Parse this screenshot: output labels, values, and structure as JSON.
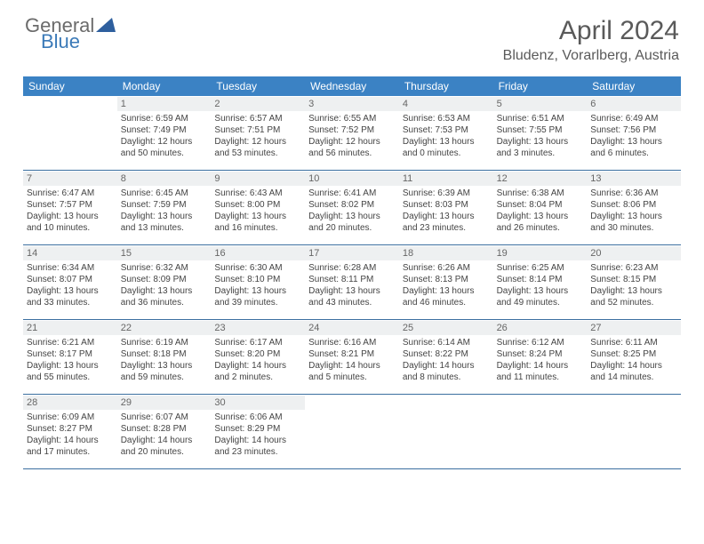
{
  "logo": {
    "text1": "General",
    "text2": "Blue"
  },
  "header": {
    "month": "April 2024",
    "location": "Bludenz, Vorarlberg, Austria"
  },
  "colors": {
    "header_bg": "#3b82c4",
    "border": "#3b6fa0",
    "daynum_bg": "#eef0f1"
  },
  "daysOfWeek": [
    "Sunday",
    "Monday",
    "Tuesday",
    "Wednesday",
    "Thursday",
    "Friday",
    "Saturday"
  ],
  "weeks": [
    [
      null,
      {
        "n": "1",
        "sr": "6:59 AM",
        "ss": "7:49 PM",
        "dl": "12 hours and 50 minutes."
      },
      {
        "n": "2",
        "sr": "6:57 AM",
        "ss": "7:51 PM",
        "dl": "12 hours and 53 minutes."
      },
      {
        "n": "3",
        "sr": "6:55 AM",
        "ss": "7:52 PM",
        "dl": "12 hours and 56 minutes."
      },
      {
        "n": "4",
        "sr": "6:53 AM",
        "ss": "7:53 PM",
        "dl": "13 hours and 0 minutes."
      },
      {
        "n": "5",
        "sr": "6:51 AM",
        "ss": "7:55 PM",
        "dl": "13 hours and 3 minutes."
      },
      {
        "n": "6",
        "sr": "6:49 AM",
        "ss": "7:56 PM",
        "dl": "13 hours and 6 minutes."
      }
    ],
    [
      {
        "n": "7",
        "sr": "6:47 AM",
        "ss": "7:57 PM",
        "dl": "13 hours and 10 minutes."
      },
      {
        "n": "8",
        "sr": "6:45 AM",
        "ss": "7:59 PM",
        "dl": "13 hours and 13 minutes."
      },
      {
        "n": "9",
        "sr": "6:43 AM",
        "ss": "8:00 PM",
        "dl": "13 hours and 16 minutes."
      },
      {
        "n": "10",
        "sr": "6:41 AM",
        "ss": "8:02 PM",
        "dl": "13 hours and 20 minutes."
      },
      {
        "n": "11",
        "sr": "6:39 AM",
        "ss": "8:03 PM",
        "dl": "13 hours and 23 minutes."
      },
      {
        "n": "12",
        "sr": "6:38 AM",
        "ss": "8:04 PM",
        "dl": "13 hours and 26 minutes."
      },
      {
        "n": "13",
        "sr": "6:36 AM",
        "ss": "8:06 PM",
        "dl": "13 hours and 30 minutes."
      }
    ],
    [
      {
        "n": "14",
        "sr": "6:34 AM",
        "ss": "8:07 PM",
        "dl": "13 hours and 33 minutes."
      },
      {
        "n": "15",
        "sr": "6:32 AM",
        "ss": "8:09 PM",
        "dl": "13 hours and 36 minutes."
      },
      {
        "n": "16",
        "sr": "6:30 AM",
        "ss": "8:10 PM",
        "dl": "13 hours and 39 minutes."
      },
      {
        "n": "17",
        "sr": "6:28 AM",
        "ss": "8:11 PM",
        "dl": "13 hours and 43 minutes."
      },
      {
        "n": "18",
        "sr": "6:26 AM",
        "ss": "8:13 PM",
        "dl": "13 hours and 46 minutes."
      },
      {
        "n": "19",
        "sr": "6:25 AM",
        "ss": "8:14 PM",
        "dl": "13 hours and 49 minutes."
      },
      {
        "n": "20",
        "sr": "6:23 AM",
        "ss": "8:15 PM",
        "dl": "13 hours and 52 minutes."
      }
    ],
    [
      {
        "n": "21",
        "sr": "6:21 AM",
        "ss": "8:17 PM",
        "dl": "13 hours and 55 minutes."
      },
      {
        "n": "22",
        "sr": "6:19 AM",
        "ss": "8:18 PM",
        "dl": "13 hours and 59 minutes."
      },
      {
        "n": "23",
        "sr": "6:17 AM",
        "ss": "8:20 PM",
        "dl": "14 hours and 2 minutes."
      },
      {
        "n": "24",
        "sr": "6:16 AM",
        "ss": "8:21 PM",
        "dl": "14 hours and 5 minutes."
      },
      {
        "n": "25",
        "sr": "6:14 AM",
        "ss": "8:22 PM",
        "dl": "14 hours and 8 minutes."
      },
      {
        "n": "26",
        "sr": "6:12 AM",
        "ss": "8:24 PM",
        "dl": "14 hours and 11 minutes."
      },
      {
        "n": "27",
        "sr": "6:11 AM",
        "ss": "8:25 PM",
        "dl": "14 hours and 14 minutes."
      }
    ],
    [
      {
        "n": "28",
        "sr": "6:09 AM",
        "ss": "8:27 PM",
        "dl": "14 hours and 17 minutes."
      },
      {
        "n": "29",
        "sr": "6:07 AM",
        "ss": "8:28 PM",
        "dl": "14 hours and 20 minutes."
      },
      {
        "n": "30",
        "sr": "6:06 AM",
        "ss": "8:29 PM",
        "dl": "14 hours and 23 minutes."
      },
      null,
      null,
      null,
      null
    ]
  ],
  "labels": {
    "sunrise": "Sunrise:",
    "sunset": "Sunset:",
    "daylight": "Daylight:"
  }
}
